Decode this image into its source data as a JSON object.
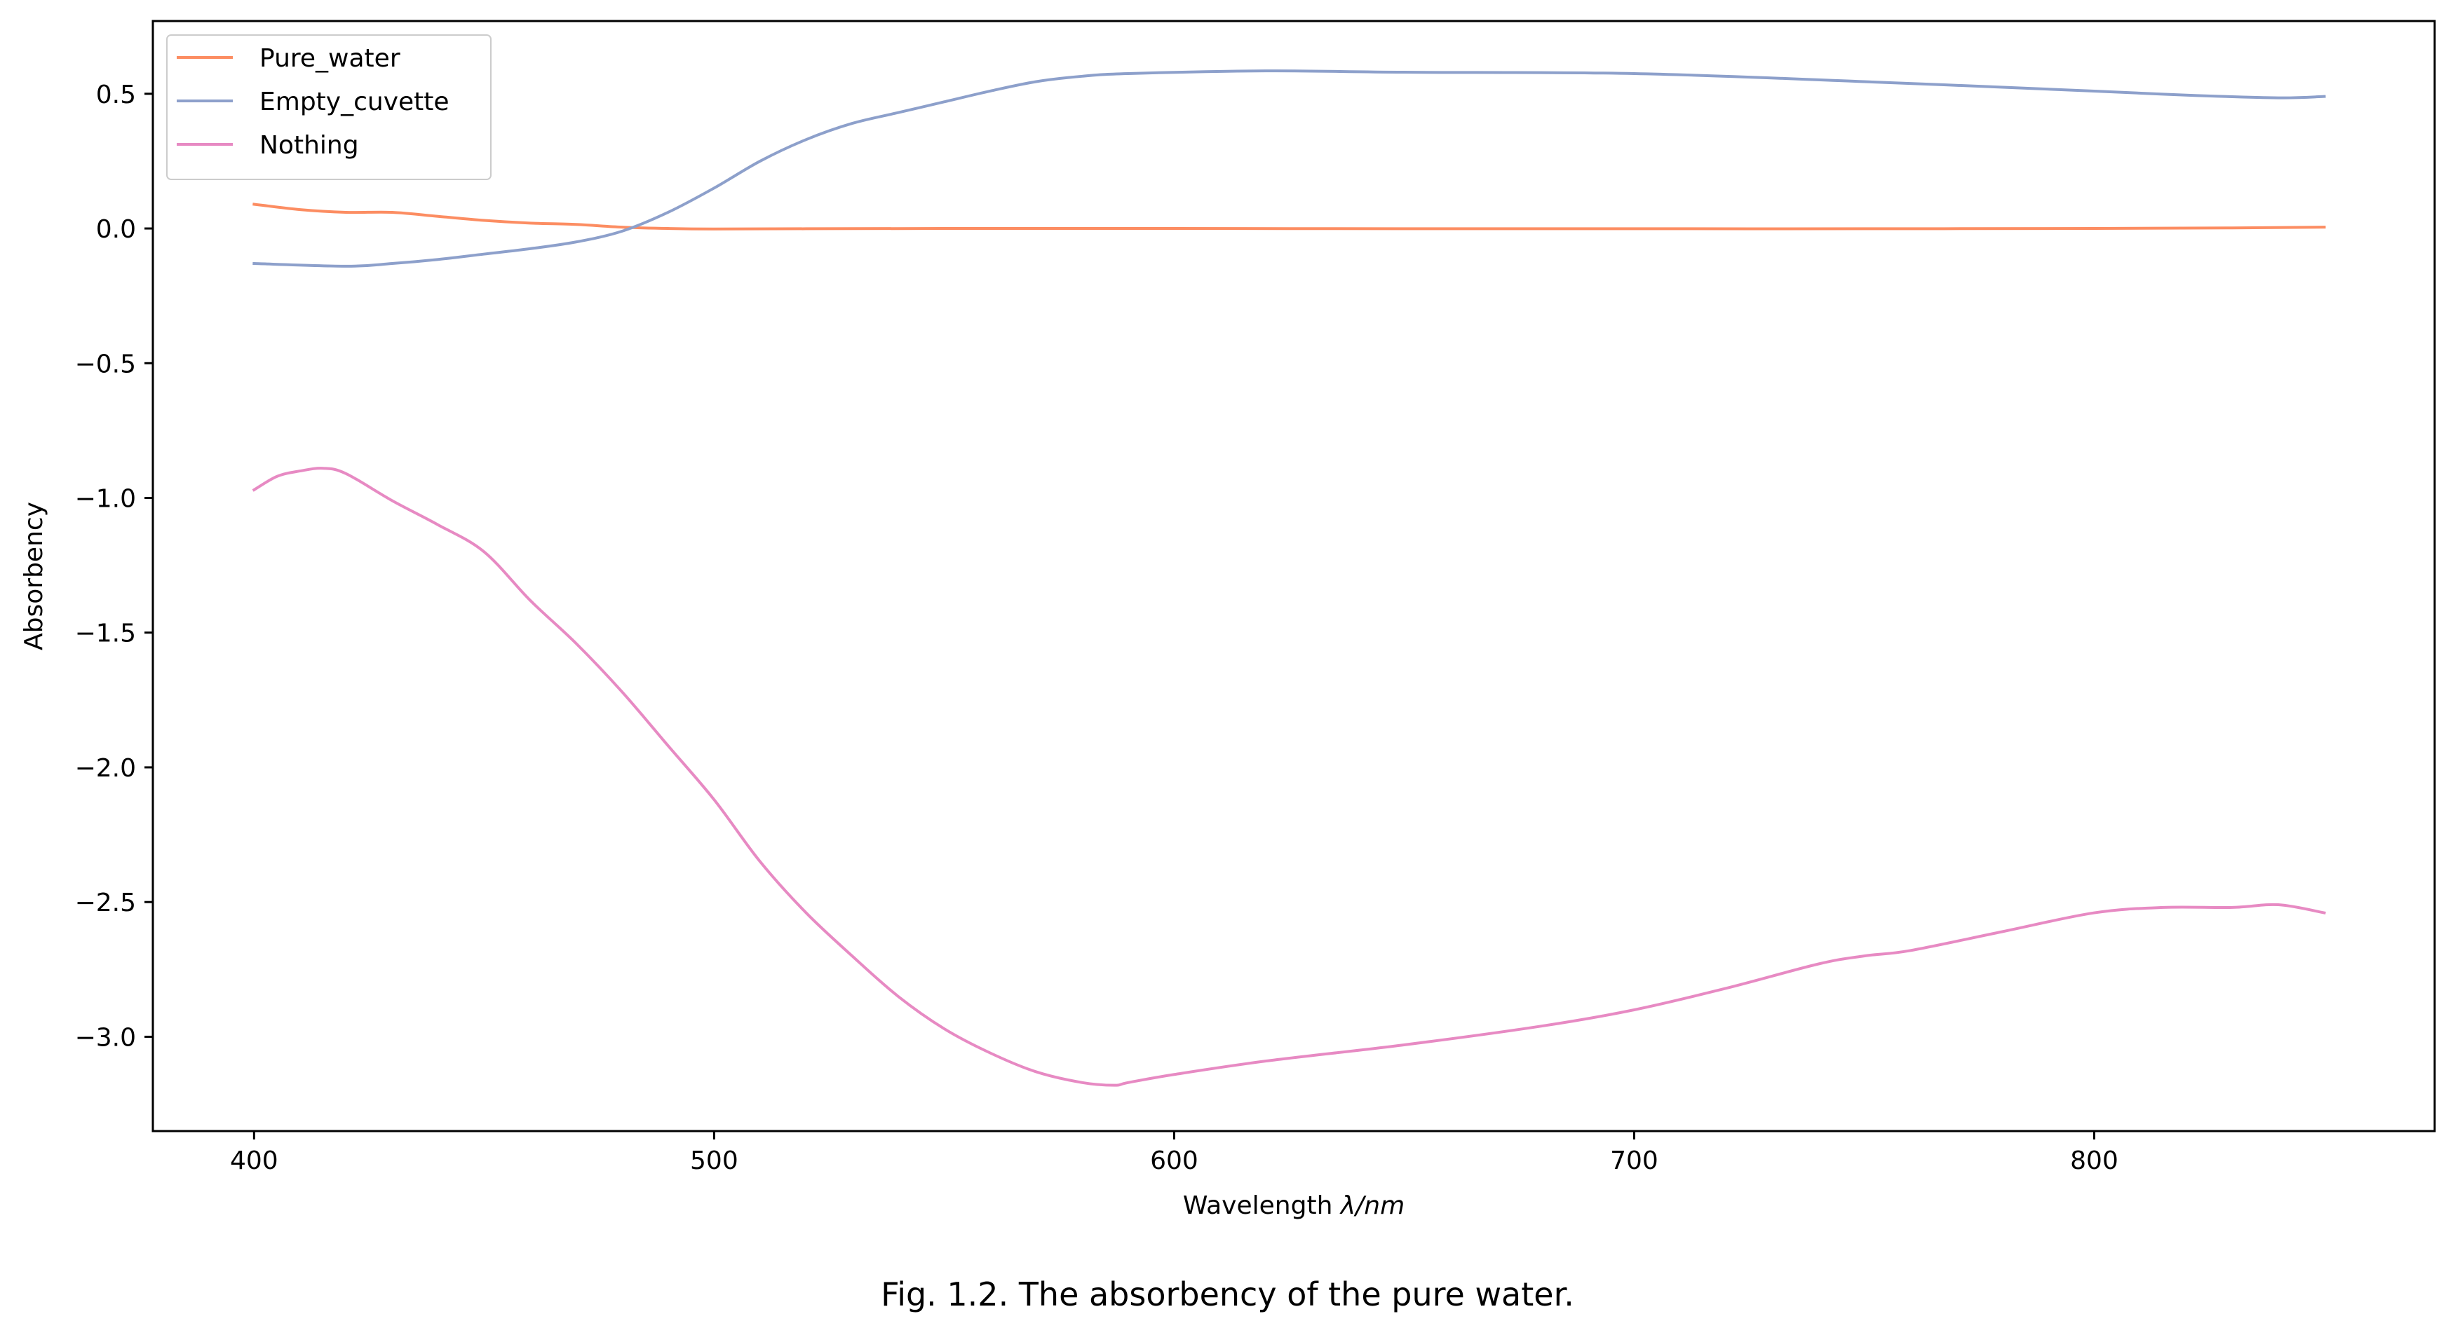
{
  "figure": {
    "caption": "Fig. 1.2. The absorbency of the pure water."
  },
  "chart_data": {
    "type": "line",
    "xlabel_prefix": "Wavelength ",
    "xlabel_symbol": "λ/nm",
    "ylabel": "Absorbency",
    "xlim": [
      378,
      874
    ],
    "ylim": [
      -3.35,
      0.77
    ],
    "xticks": [
      400,
      500,
      600,
      700,
      800
    ],
    "xtick_labels": [
      "400",
      "500",
      "600",
      "700",
      "800"
    ],
    "yticks": [
      0.5,
      0.0,
      -0.5,
      -1.0,
      -1.5,
      -2.0,
      -2.5,
      -3.0
    ],
    "ytick_labels": [
      "0.5",
      "0.0",
      "−0.5",
      "−1.0",
      "−1.5",
      "−2.0",
      "−2.5",
      "−3.0"
    ],
    "grid": false,
    "legend_position": "top-left",
    "series": [
      {
        "name": "Pure_water",
        "color": "#fc8d62",
        "x": [
          400,
          410,
          420,
          430,
          440,
          450,
          460,
          470,
          480,
          490,
          500,
          520,
          550,
          600,
          650,
          700,
          750,
          800,
          830,
          850
        ],
        "y": [
          0.09,
          0.07,
          0.06,
          0.06,
          0.045,
          0.03,
          0.02,
          0.015,
          0.005,
          0.0,
          -0.002,
          -0.001,
          0.0,
          0.0,
          -0.001,
          -0.001,
          -0.001,
          0.0,
          0.002,
          0.005
        ]
      },
      {
        "name": "Empty_cuvette",
        "color": "#8da0cb",
        "x": [
          400,
          420,
          430,
          440,
          450,
          460,
          470,
          480,
          490,
          500,
          510,
          520,
          530,
          540,
          550,
          560,
          570,
          580,
          590,
          620,
          650,
          700,
          750,
          800,
          820,
          840,
          850
        ],
        "y": [
          -0.13,
          -0.14,
          -0.13,
          -0.115,
          -0.095,
          -0.075,
          -0.05,
          -0.01,
          0.06,
          0.15,
          0.25,
          0.33,
          0.39,
          0.43,
          0.47,
          0.51,
          0.545,
          0.565,
          0.575,
          0.585,
          0.58,
          0.575,
          0.545,
          0.51,
          0.495,
          0.485,
          0.49
        ]
      },
      {
        "name": "Nothing",
        "color": "#e78ac3",
        "x": [
          400,
          405,
          410,
          415,
          420,
          430,
          440,
          450,
          460,
          470,
          480,
          490,
          500,
          510,
          520,
          530,
          540,
          550,
          560,
          570,
          580,
          587,
          590,
          600,
          620,
          650,
          680,
          700,
          720,
          740,
          750,
          760,
          780,
          800,
          815,
          830,
          840,
          850
        ],
        "y": [
          -0.97,
          -0.92,
          -0.9,
          -0.89,
          -0.91,
          -1.01,
          -1.1,
          -1.2,
          -1.38,
          -1.54,
          -1.72,
          -1.92,
          -2.12,
          -2.35,
          -2.54,
          -2.7,
          -2.85,
          -2.97,
          -3.06,
          -3.13,
          -3.17,
          -3.18,
          -3.17,
          -3.14,
          -3.09,
          -3.03,
          -2.96,
          -2.9,
          -2.82,
          -2.73,
          -2.7,
          -2.68,
          -2.61,
          -2.54,
          -2.52,
          -2.52,
          -2.51,
          -2.54
        ]
      }
    ]
  }
}
